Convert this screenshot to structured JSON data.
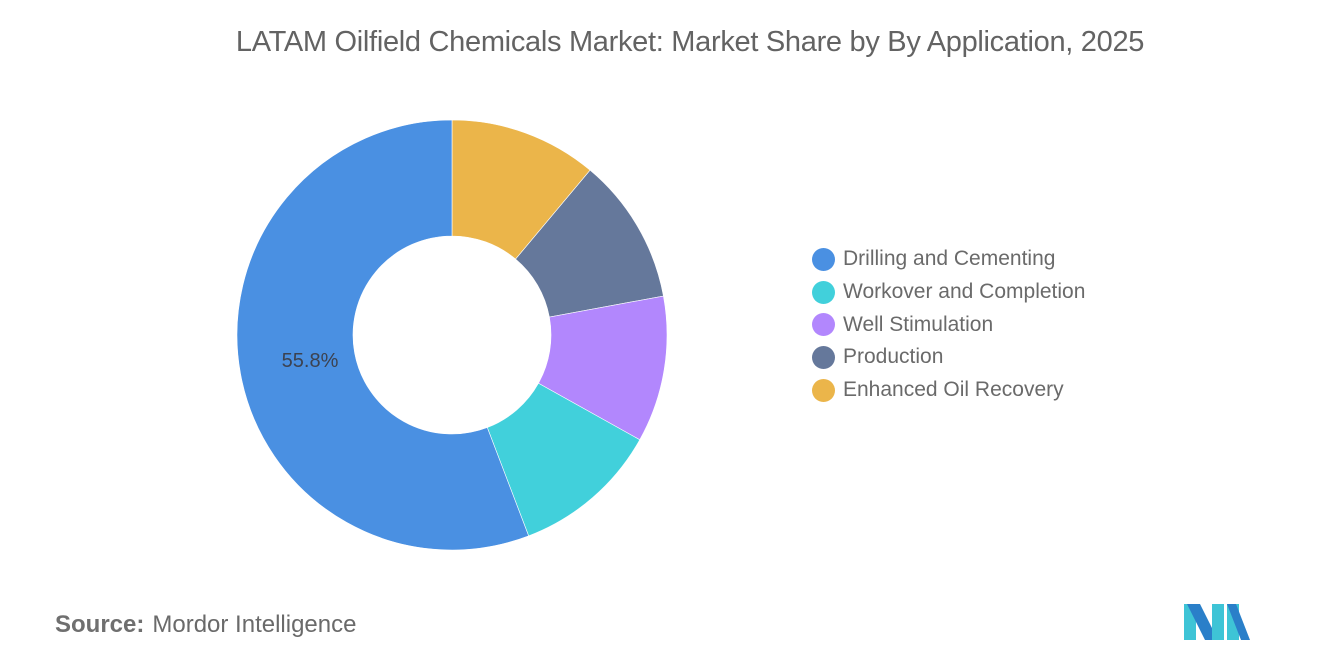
{
  "title": "LATAM Oilfield Chemicals Market: Market Share by By Application, 2025",
  "source": {
    "label": "Source:",
    "value": "Mordor Intelligence"
  },
  "logo": {
    "name": "mordor-intelligence-logo",
    "colors": [
      "#2a7fc9",
      "#3ec4d6"
    ]
  },
  "chart_data": {
    "type": "pie",
    "subtype": "donut",
    "title": "LATAM Oilfield Chemicals Market: Market Share by By Application, 2025",
    "categories": [
      "Drilling and Cementing",
      "Workover and Completion",
      "Well Stimulation",
      "Production",
      "Enhanced Oil Recovery"
    ],
    "values": [
      55.8,
      11.1,
      11.0,
      11.0,
      11.1
    ],
    "colors": [
      "#4a90e2",
      "#41d0db",
      "#b287fd",
      "#65789b",
      "#ebb54a"
    ],
    "data_labels": [
      {
        "category": "Drilling and Cementing",
        "text": "55.8%"
      }
    ],
    "legend_position": "right",
    "start_angle_deg": 0,
    "draw_order_clockwise": [
      "Enhanced Oil Recovery",
      "Production",
      "Well Stimulation",
      "Workover and Completion",
      "Drilling and Cementing"
    ],
    "inner_radius_ratio": 0.46
  }
}
